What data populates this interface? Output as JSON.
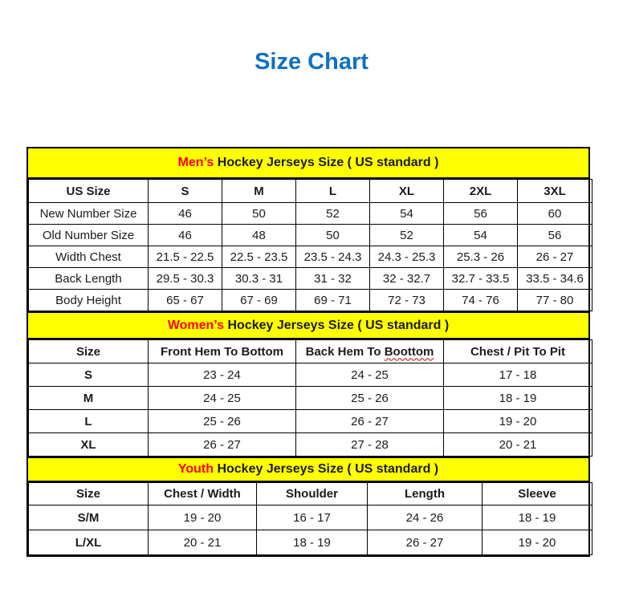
{
  "page": {
    "title": "Size Chart"
  },
  "colors": {
    "title_blue": "#0E71C2",
    "accent_red": "#FF0000",
    "band_yellow": "#FFFF00",
    "text": "#1B1B1B",
    "border": "#000000"
  },
  "sections": [
    {
      "id": "mens",
      "accent": "Men’s",
      "rest": " Hockey Jerseys Size ( US standard )",
      "columns": [
        "US Size",
        "S",
        "M",
        "L",
        "XL",
        "2XL",
        "3XL"
      ],
      "bold_row_labels": false,
      "rows": [
        {
          "label": "New Number Size",
          "values": [
            "46",
            "50",
            "52",
            "54",
            "56",
            "60"
          ]
        },
        {
          "label": "Old Number Size",
          "values": [
            "46",
            "48",
            "50",
            "52",
            "54",
            "56"
          ]
        },
        {
          "label": "Width Chest",
          "values": [
            "21.5 - 22.5",
            "22.5 - 23.5",
            "23.5 - 24.3",
            "24.3 - 25.3",
            "25.3 - 26",
            "26 - 27"
          ]
        },
        {
          "label": "Back Length",
          "values": [
            "29.5 - 30.3",
            "30.3 - 31",
            "31 - 32",
            "32 - 32.7",
            "32.7 - 33.5",
            "33.5 - 34.6"
          ]
        },
        {
          "label": "Body Height",
          "values": [
            "65 - 67",
            "67 - 69",
            "69 - 71",
            "72 - 73",
            "74 - 76",
            "77 - 80"
          ]
        }
      ]
    },
    {
      "id": "womens",
      "accent": "Women’s",
      "rest": " Hockey Jerseys Size ( US standard )",
      "columns": [
        "Size",
        "Front Hem To Bottom",
        {
          "prefix": "Back Hem To ",
          "squiggle": "Boottom"
        },
        "Chest / Pit To Pit"
      ],
      "bold_row_labels": true,
      "rows": [
        {
          "label": "S",
          "values": [
            "23 - 24",
            "24 - 25",
            "17 - 18"
          ]
        },
        {
          "label": "M",
          "values": [
            "24 - 25",
            "25 - 26",
            "18 - 19"
          ]
        },
        {
          "label": "L",
          "values": [
            "25 - 26",
            "26 - 27",
            "19 - 20"
          ]
        },
        {
          "label": "XL",
          "values": [
            "26 - 27",
            "27 - 28",
            "20 - 21"
          ]
        }
      ]
    },
    {
      "id": "youth",
      "accent": "Youth",
      "rest": " Hockey Jerseys Size ( US standard )",
      "columns": [
        "Size",
        "Chest / Width",
        "Shoulder",
        "Length",
        "Sleeve"
      ],
      "bold_row_labels": true,
      "rows": [
        {
          "label": "S/M",
          "values": [
            "19 - 20",
            "16 - 17",
            "24 - 26",
            "18 - 19"
          ]
        },
        {
          "label": "L/XL",
          "values": [
            "20 - 21",
            "18 - 19",
            "26 - 27",
            "19 - 20"
          ]
        }
      ]
    }
  ]
}
